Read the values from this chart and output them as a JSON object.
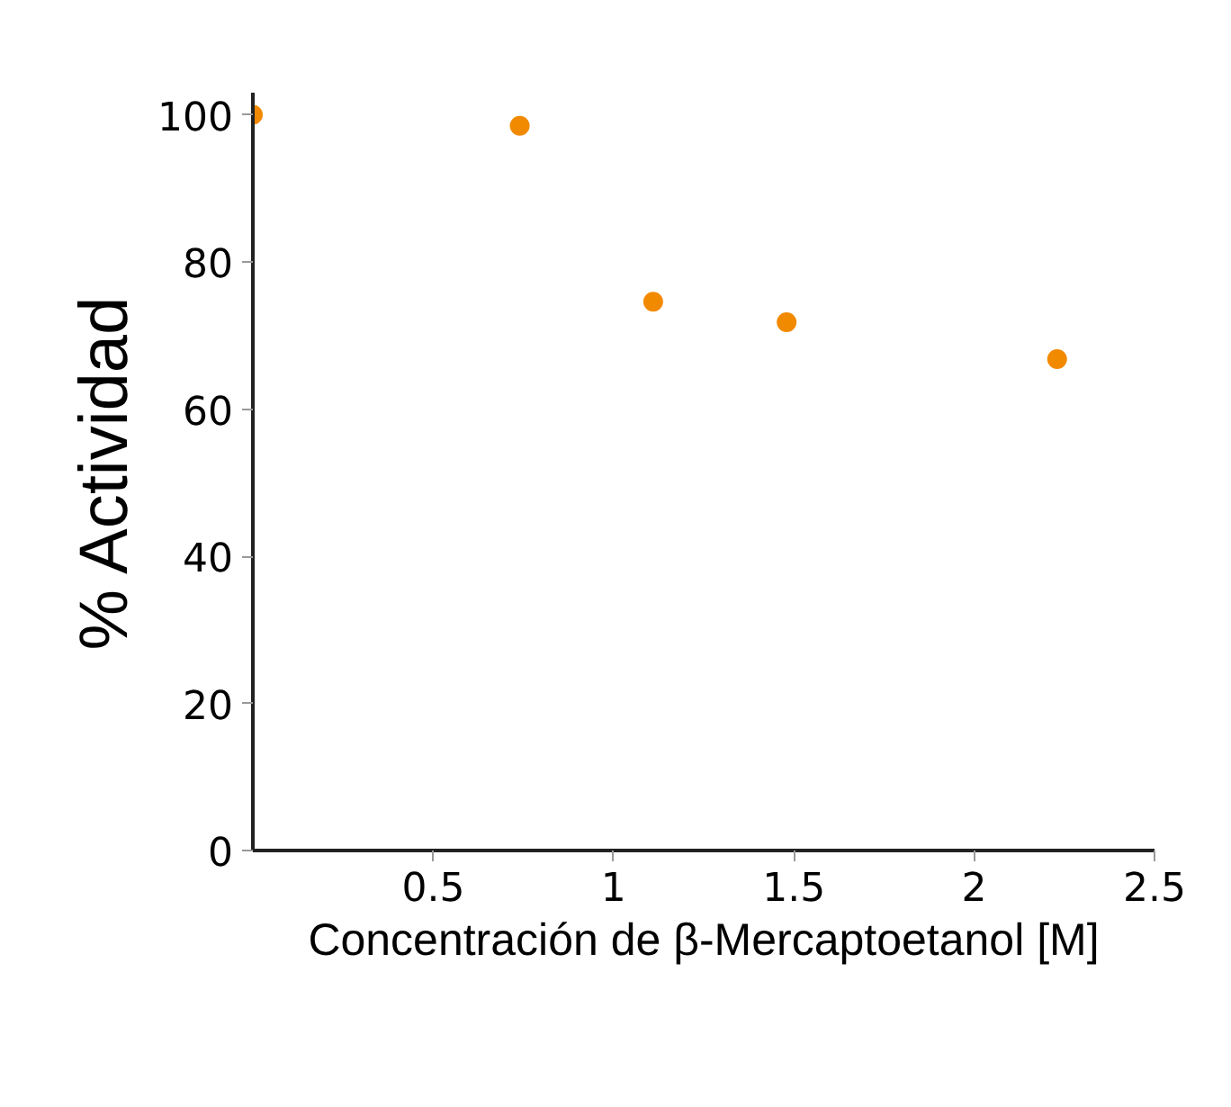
{
  "chart_data": {
    "type": "scatter",
    "xlabel": "Concentración de β-Mercaptoetanol [M]",
    "ylabel": "% Actividad",
    "x": [
      0,
      0.74,
      1.11,
      1.48,
      2.23
    ],
    "values": [
      100,
      98.5,
      74.6,
      71.8,
      66.8
    ],
    "color": "#f28a00",
    "marker": "circle",
    "xlim": [
      0,
      2.5
    ],
    "ylim": [
      0,
      103
    ],
    "xticks": [
      0.5,
      1,
      1.5,
      2,
      2.5
    ],
    "yticks": [
      0,
      20,
      40,
      60,
      80,
      100
    ],
    "grid": false
  }
}
